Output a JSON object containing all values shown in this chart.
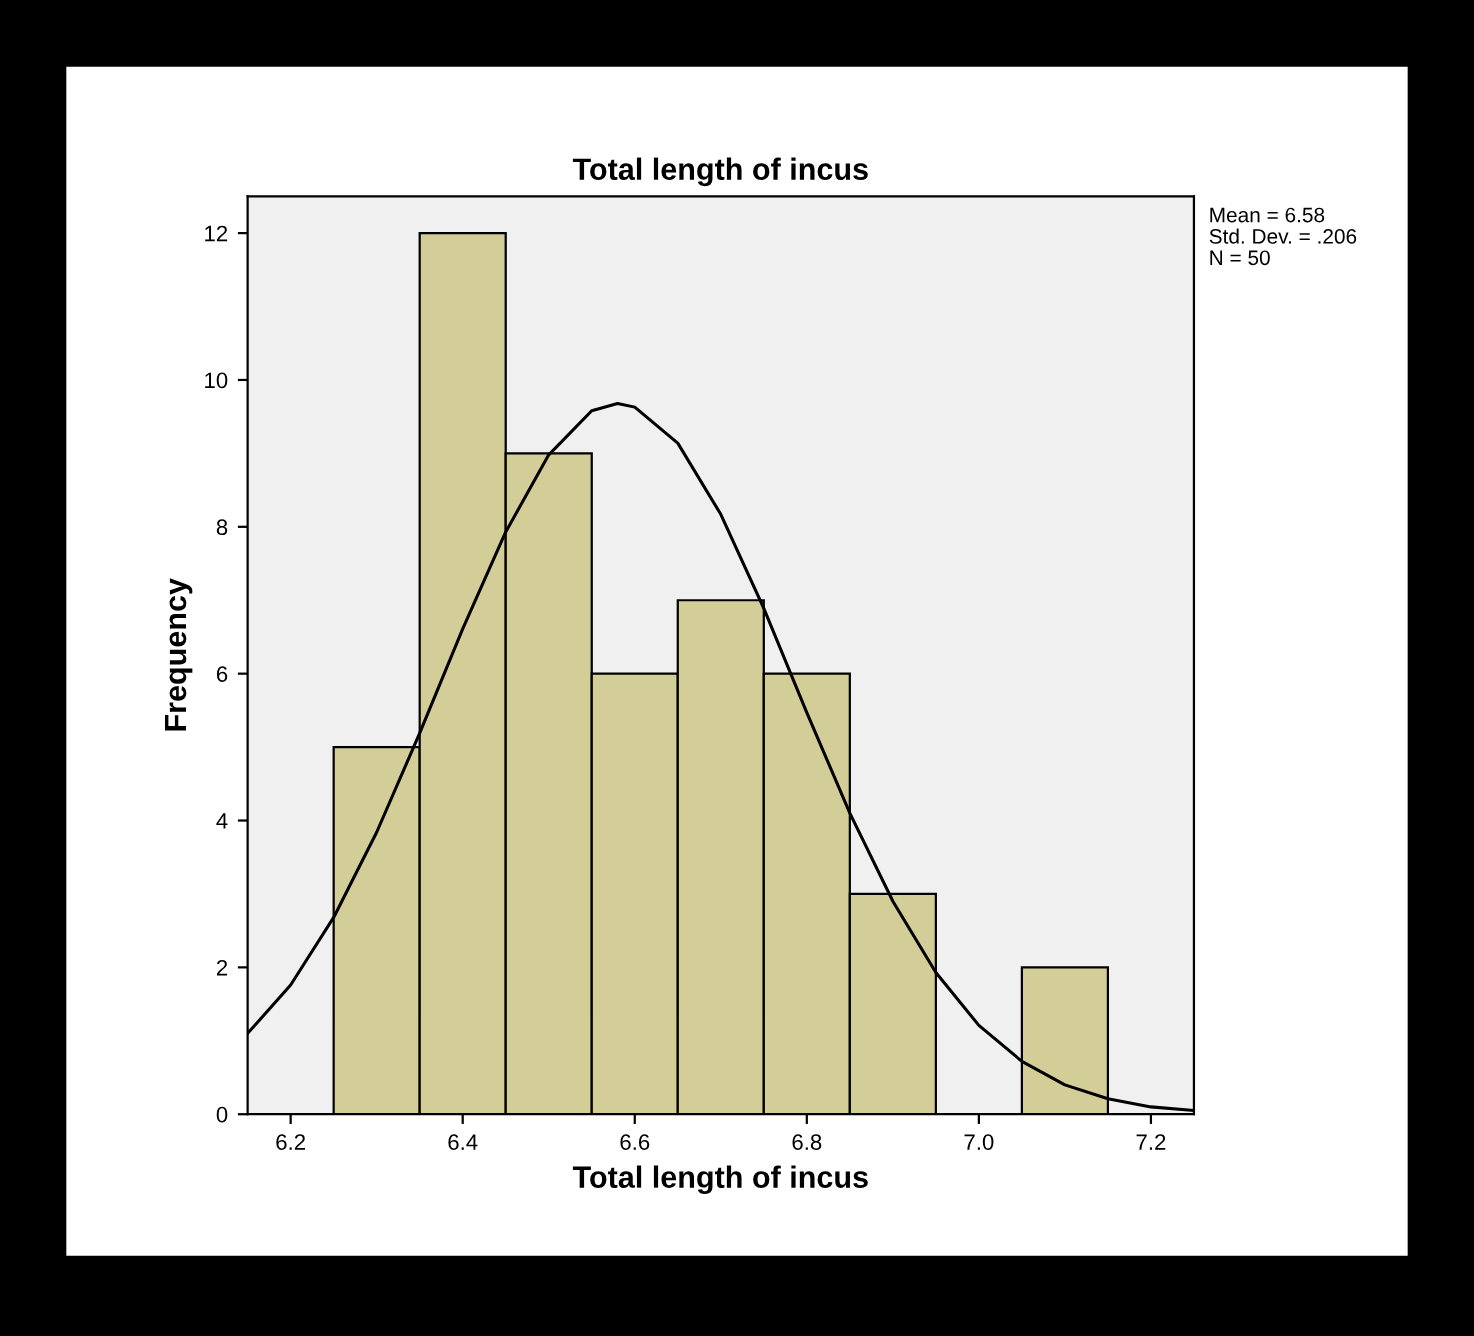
{
  "chart_data": {
    "type": "histogram",
    "title": "Total length of incus",
    "xlabel": "Total length of incus",
    "ylabel": "Frequency",
    "bins": [
      6.25,
      6.35,
      6.45,
      6.55,
      6.65,
      6.75,
      6.85,
      6.95,
      7.05,
      7.15
    ],
    "values": [
      5,
      12,
      9,
      6,
      7,
      6,
      3,
      0,
      2
    ],
    "color": "#d3ce97",
    "series": [
      {
        "type": "line",
        "color": "#000000",
        "x": [
          6.15,
          6.2,
          6.25,
          6.3,
          6.35,
          6.4,
          6.45,
          6.5,
          6.55,
          6.58,
          6.6,
          6.65,
          6.7,
          6.75,
          6.8,
          6.85,
          6.9,
          6.95,
          7.0,
          7.05,
          7.1,
          7.15,
          7.2,
          7.25
        ],
        "values": [
          1.1,
          1.76,
          2.68,
          3.84,
          5.19,
          6.61,
          7.93,
          8.98,
          9.58,
          9.68,
          9.63,
          9.14,
          8.17,
          6.89,
          5.47,
          4.1,
          2.9,
          1.93,
          1.21,
          0.72,
          0.4,
          0.21,
          0.1,
          0.05
        ]
      }
    ],
    "xlim": [
      6.15,
      7.25
    ],
    "ylim": [
      0,
      12.5
    ],
    "xticks": [
      6.2,
      6.4,
      6.6,
      6.8,
      {
        "value": 7.0,
        "label": "7.0"
      },
      7.2
    ],
    "yticks": [
      0,
      2,
      4,
      6,
      8,
      10,
      12
    ],
    "annotations": [
      "Mean = 6.58",
      "Std. Dev. = .206",
      "N = 50"
    ],
    "grid": false,
    "legend": false
  }
}
